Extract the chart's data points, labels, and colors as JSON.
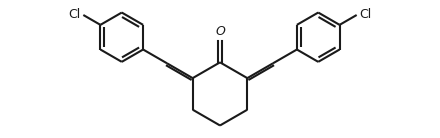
{
  "line_color": "#1a1a1a",
  "bg_color": "#ffffff",
  "line_width": 1.5,
  "figsize": [
    4.4,
    1.38
  ],
  "dpi": 100,
  "o_label": "O",
  "cl_label_left": "Cl",
  "cl_label_right": "Cl",
  "font_size": 9
}
